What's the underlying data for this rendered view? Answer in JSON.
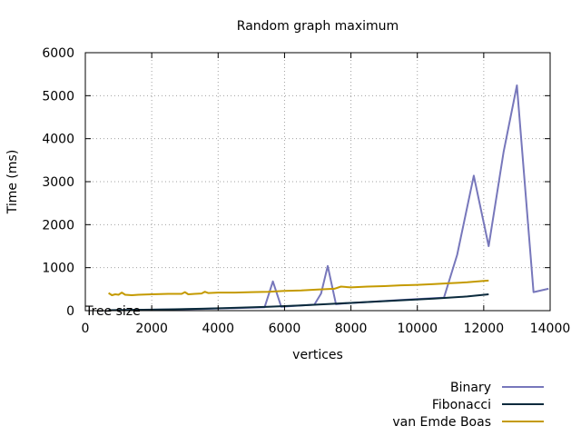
{
  "chart_data": {
    "type": "line",
    "title": "Random graph maximum",
    "xlabel": "vertices",
    "ylabel": "Time (ms)",
    "xlim": [
      0,
      14000
    ],
    "ylim": [
      0,
      6000
    ],
    "xticks": [
      0,
      2000,
      4000,
      6000,
      8000,
      10000,
      12000,
      14000
    ],
    "yticks": [
      0,
      1000,
      2000,
      3000,
      4000,
      5000,
      6000
    ],
    "grid": true,
    "legend_position": "below-right",
    "annotation": "Tree size",
    "series": [
      {
        "name": "Binary",
        "color": "#7777bb",
        "x": [
          700,
          1500,
          2500,
          3500,
          4500,
          5400,
          5650,
          5900,
          6300,
          6900,
          7100,
          7300,
          7550,
          7800,
          8500,
          9500,
          10500,
          10800,
          11200,
          11700,
          12150,
          12600,
          13000,
          13500,
          13950
        ],
        "y": [
          10,
          15,
          25,
          40,
          60,
          80,
          680,
          90,
          110,
          140,
          400,
          1040,
          150,
          170,
          200,
          250,
          290,
          300,
          1300,
          3140,
          1500,
          3700,
          5240,
          430,
          510
        ]
      },
      {
        "name": "Fibonacci",
        "color": "#0a2a3c",
        "x": [
          700,
          1500,
          2500,
          3500,
          4500,
          5500,
          6500,
          7500,
          8500,
          9500,
          10500,
          11500,
          12150
        ],
        "y": [
          10,
          20,
          30,
          45,
          65,
          90,
          120,
          160,
          200,
          240,
          280,
          330,
          380
        ]
      },
      {
        "name": "van Emde Boas",
        "color": "#c49a00",
        "x": [
          700,
          800,
          900,
          1000,
          1100,
          1200,
          1400,
          1600,
          2000,
          2500,
          2900,
          3000,
          3100,
          3300,
          3500,
          3600,
          3700,
          4000,
          4500,
          5000,
          5500,
          6000,
          6500,
          7000,
          7500,
          7700,
          8000,
          8500,
          9000,
          9500,
          10000,
          10500,
          11000,
          11500,
          12000,
          12150
        ],
        "y": [
          410,
          360,
          380,
          370,
          420,
          370,
          360,
          370,
          380,
          390,
          390,
          430,
          380,
          390,
          400,
          440,
          410,
          420,
          420,
          430,
          440,
          460,
          470,
          490,
          510,
          560,
          540,
          560,
          570,
          590,
          600,
          620,
          640,
          660,
          690,
          700
        ]
      }
    ]
  }
}
